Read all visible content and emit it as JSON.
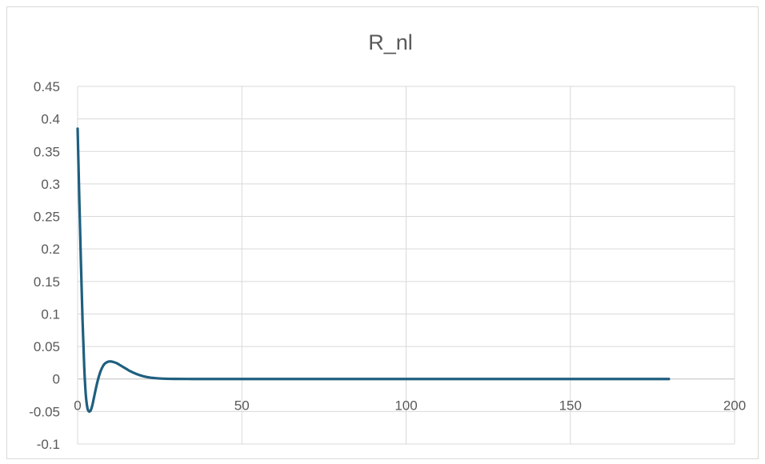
{
  "chart_data": {
    "type": "line",
    "title": "R_nl",
    "xlabel": "",
    "ylabel": "",
    "xlim": [
      0,
      200
    ],
    "ylim": [
      -0.1,
      0.45
    ],
    "x_ticks": [
      0,
      50,
      100,
      150,
      200
    ],
    "x_tick_labels": [
      "0",
      "50",
      "100",
      "150",
      "200"
    ],
    "y_ticks": [
      -0.1,
      -0.05,
      0,
      0.05,
      0.1,
      0.15,
      0.2,
      0.25,
      0.3,
      0.35,
      0.4,
      0.45
    ],
    "y_tick_labels": [
      "-0.1",
      "-0.05",
      "0",
      "0.05",
      "0.1",
      "0.15",
      "0.2",
      "0.25",
      "0.3",
      "0.35",
      "0.4",
      "0.45"
    ],
    "grid": true,
    "legend": "none",
    "series": [
      {
        "color": "#1f5f7f",
        "x": [
          0,
          0.5,
          1,
          1.5,
          2,
          2.5,
          3,
          3.5,
          4,
          4.5,
          5,
          6,
          7,
          8,
          9,
          10,
          11,
          12,
          13,
          14,
          15,
          16,
          18,
          20,
          22,
          24,
          26,
          28,
          30,
          35,
          40,
          50,
          60,
          80,
          100,
          120,
          140,
          160,
          180
        ],
        "y": [
          0.385,
          0.28,
          0.18,
          0.09,
          0.02,
          -0.025,
          -0.045,
          -0.05,
          -0.048,
          -0.04,
          -0.028,
          -0.005,
          0.012,
          0.022,
          0.026,
          0.027,
          0.026,
          0.024,
          0.021,
          0.018,
          0.015,
          0.012,
          0.0075,
          0.0042,
          0.0022,
          0.0011,
          0.0005,
          0.0002,
          0.0001,
          0,
          0,
          0,
          0,
          0,
          0,
          0,
          0,
          0,
          0
        ]
      }
    ]
  }
}
